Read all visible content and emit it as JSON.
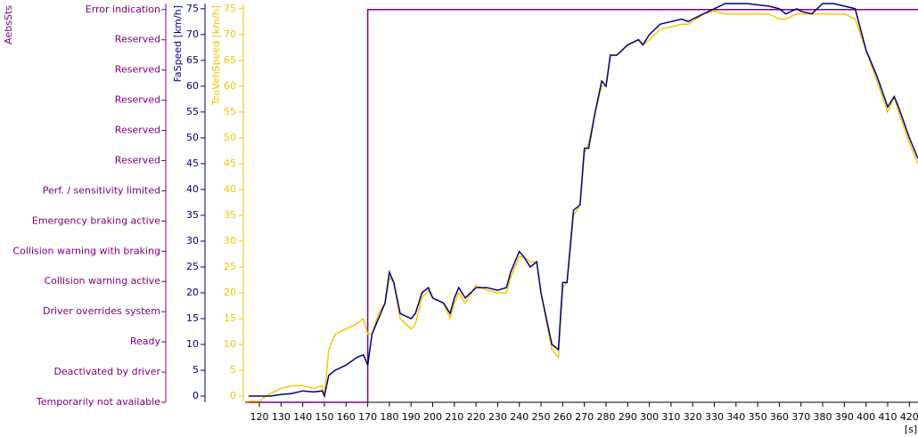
{
  "chart_data": {
    "type": "line",
    "x": [
      115,
      120,
      123,
      125,
      130,
      135,
      140,
      145,
      149,
      150,
      152,
      155,
      160,
      165,
      168,
      170,
      172,
      175,
      178,
      180,
      182,
      185,
      190,
      192,
      195,
      198,
      200,
      205,
      208,
      210,
      212,
      215,
      220,
      225,
      230,
      234,
      236,
      240,
      242,
      245,
      248,
      250,
      255,
      258,
      260,
      262,
      265,
      268,
      270,
      272,
      275,
      278,
      280,
      282,
      285,
      290,
      295,
      297,
      300,
      305,
      310,
      315,
      318,
      320,
      325,
      330,
      335,
      345,
      355,
      360,
      363,
      368,
      370,
      375,
      380,
      385,
      390,
      395,
      400,
      405,
      410,
      413,
      415,
      420,
      424
    ],
    "xlim": [
      113.4,
      424
    ],
    "xticks": [
      120,
      130,
      140,
      150,
      160,
      170,
      180,
      190,
      200,
      210,
      220,
      230,
      240,
      250,
      260,
      270,
      280,
      290,
      300,
      310,
      320,
      330,
      340,
      350,
      360,
      370,
      380,
      390,
      400,
      410,
      420
    ],
    "xlabel": "[s]",
    "axes": [
      {
        "label": "AebsSts",
        "color": "#800080",
        "ylim": [
          0,
          13.2
        ],
        "ticks": [
          {
            "value": 0,
            "label": "Temporarily not available"
          },
          {
            "value": 1,
            "label": "Deactivated by driver"
          },
          {
            "value": 2,
            "label": "Ready"
          },
          {
            "value": 3,
            "label": "Driver overrides system"
          },
          {
            "value": 4,
            "label": "Collision warning active"
          },
          {
            "value": 5,
            "label": "Collision warning with braking"
          },
          {
            "value": 6,
            "label": "Emergency braking active"
          },
          {
            "value": 7,
            "label": "Perf. / sensitivity limited"
          },
          {
            "value": 8,
            "label": "Reserved"
          },
          {
            "value": 9,
            "label": "Reserved"
          },
          {
            "value": 10,
            "label": "Reserved"
          },
          {
            "value": 11,
            "label": "Reserved"
          },
          {
            "value": 12,
            "label": "Reserved"
          },
          {
            "value": 13,
            "label": "Error indication"
          }
        ]
      },
      {
        "label": "FaSpeed [km/h]",
        "color": "#00007f",
        "ylim": [
          -1.2,
          76
        ],
        "ticks": [
          0,
          5,
          10,
          15,
          20,
          25,
          30,
          35,
          40,
          45,
          50,
          55,
          60,
          65,
          70,
          75
        ]
      },
      {
        "label": "TcoVehSpeed [km/h]",
        "color": "#f2c200",
        "ylim": [
          -1.2,
          76
        ],
        "ticks": [
          0,
          5,
          10,
          15,
          20,
          25,
          30,
          35,
          40,
          45,
          50,
          55,
          60,
          65,
          70,
          75
        ]
      }
    ],
    "series": [
      {
        "name": "AebsSts",
        "color": "#800080",
        "axis": 0,
        "x": [
          115,
          170,
          170,
          424
        ],
        "values": [
          0,
          0,
          13,
          13
        ]
      },
      {
        "name": "TcoVehSpeed",
        "color": "#f5c800",
        "axis": 2,
        "values": [
          -1,
          -1,
          0,
          0.5,
          1.5,
          2,
          2,
          1.5,
          2,
          0,
          9,
          12,
          13,
          14,
          15,
          12,
          12,
          16,
          18,
          23,
          22,
          15,
          13,
          14,
          19,
          20.5,
          19,
          18,
          15,
          18,
          20,
          18,
          21.5,
          20.5,
          20,
          20,
          23,
          27,
          27,
          26,
          26,
          20,
          9,
          7.5,
          21,
          22,
          35,
          37,
          47,
          49,
          55,
          60,
          60,
          66,
          66,
          68,
          69,
          68,
          69,
          71,
          71.5,
          72,
          72,
          72.5,
          74,
          74.5,
          74,
          74,
          74,
          73,
          73,
          74,
          74,
          74,
          74,
          74,
          74,
          73,
          67,
          61,
          55,
          58,
          55,
          49,
          45
        ]
      },
      {
        "name": "FaSpeed",
        "color": "#00007f",
        "axis": 1,
        "values": [
          0,
          0,
          0,
          0,
          0.3,
          0.5,
          1,
          0.8,
          1,
          0,
          4,
          5,
          6,
          7.5,
          8,
          6,
          12,
          15,
          18,
          24,
          22,
          16,
          15,
          16,
          20,
          21,
          19,
          18,
          16,
          19,
          21,
          19,
          21,
          21,
          20.5,
          21,
          24,
          28,
          27,
          25,
          26,
          20,
          10,
          9,
          22,
          22,
          36,
          37,
          48,
          48,
          55,
          61,
          60,
          66,
          66,
          68,
          69,
          68,
          70,
          72,
          72.5,
          73,
          72.5,
          73,
          74,
          75,
          76,
          76,
          75.5,
          75,
          74,
          75,
          74.5,
          74,
          76,
          76,
          75.5,
          75,
          67,
          62,
          56,
          58,
          56,
          50,
          46
        ]
      }
    ]
  }
}
